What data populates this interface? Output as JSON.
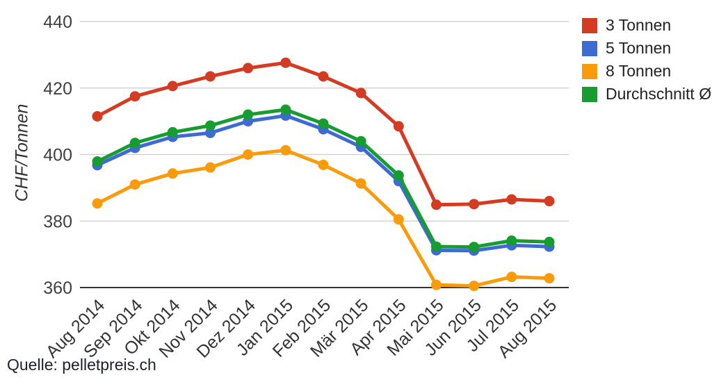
{
  "source": "Quelle: pelletpreis.ch",
  "chart_data": {
    "type": "line",
    "title": "",
    "xlabel": "",
    "ylabel": "CHF/Tonnen",
    "ylim": [
      360,
      440
    ],
    "yticks": [
      360,
      380,
      400,
      420,
      440
    ],
    "grid": true,
    "legend_position": "right",
    "marker_style": "filled-circle",
    "categories": [
      "Aug 2014",
      "Sep 2014",
      "Okt 2014",
      "Nov 2014",
      "Dez 2014",
      "Jan 2015",
      "Feb 2015",
      "Mär 2015",
      "Apr 2015",
      "Mai 2015",
      "Jun 2015",
      "Jul 2015",
      "Aug 2015"
    ],
    "series": [
      {
        "name": "3 Tonnen",
        "color": "#d33b22",
        "values": [
          411.5,
          417.5,
          420.6,
          423.5,
          426.0,
          427.6,
          423.5,
          418.5,
          408.5,
          384.9,
          385.1,
          386.5,
          386.0
        ]
      },
      {
        "name": "5 Tonnen",
        "color": "#3d6bd2",
        "values": [
          396.8,
          402.0,
          405.3,
          406.5,
          410.0,
          411.7,
          407.6,
          402.3,
          392.0,
          371.2,
          371.1,
          372.7,
          372.3
        ]
      },
      {
        "name": "8 Tonnen",
        "color": "#f99b0b",
        "values": [
          385.3,
          391.0,
          394.3,
          396.1,
          400.0,
          401.3,
          396.9,
          391.3,
          380.5,
          360.8,
          360.5,
          363.2,
          362.8
        ]
      },
      {
        "name": "Durchschnitt Ø",
        "color": "#169c2f",
        "values": [
          397.9,
          403.5,
          406.7,
          408.7,
          412.0,
          413.5,
          409.3,
          404.0,
          393.7,
          372.3,
          372.2,
          374.1,
          373.7
        ]
      }
    ]
  }
}
